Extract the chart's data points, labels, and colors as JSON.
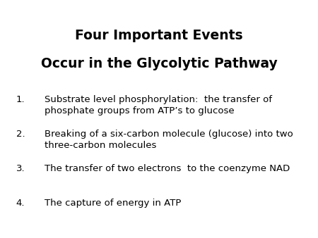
{
  "title_line1": "Four Important Events",
  "title_line2": "Occur in the Glycolytic Pathway",
  "items": [
    "Substrate level phosphorylation:  the transfer of\nphosphate groups from ATP’s to glucose",
    "Breaking of a six-carbon molecule (glucose) into two\nthree-carbon molecules",
    "The transfer of two electrons  to the coenzyme NAD",
    "The capture of energy in ATP"
  ],
  "background_color": "#ffffff",
  "text_color": "#000000",
  "title_fontsize": 13.5,
  "body_fontsize": 9.5
}
